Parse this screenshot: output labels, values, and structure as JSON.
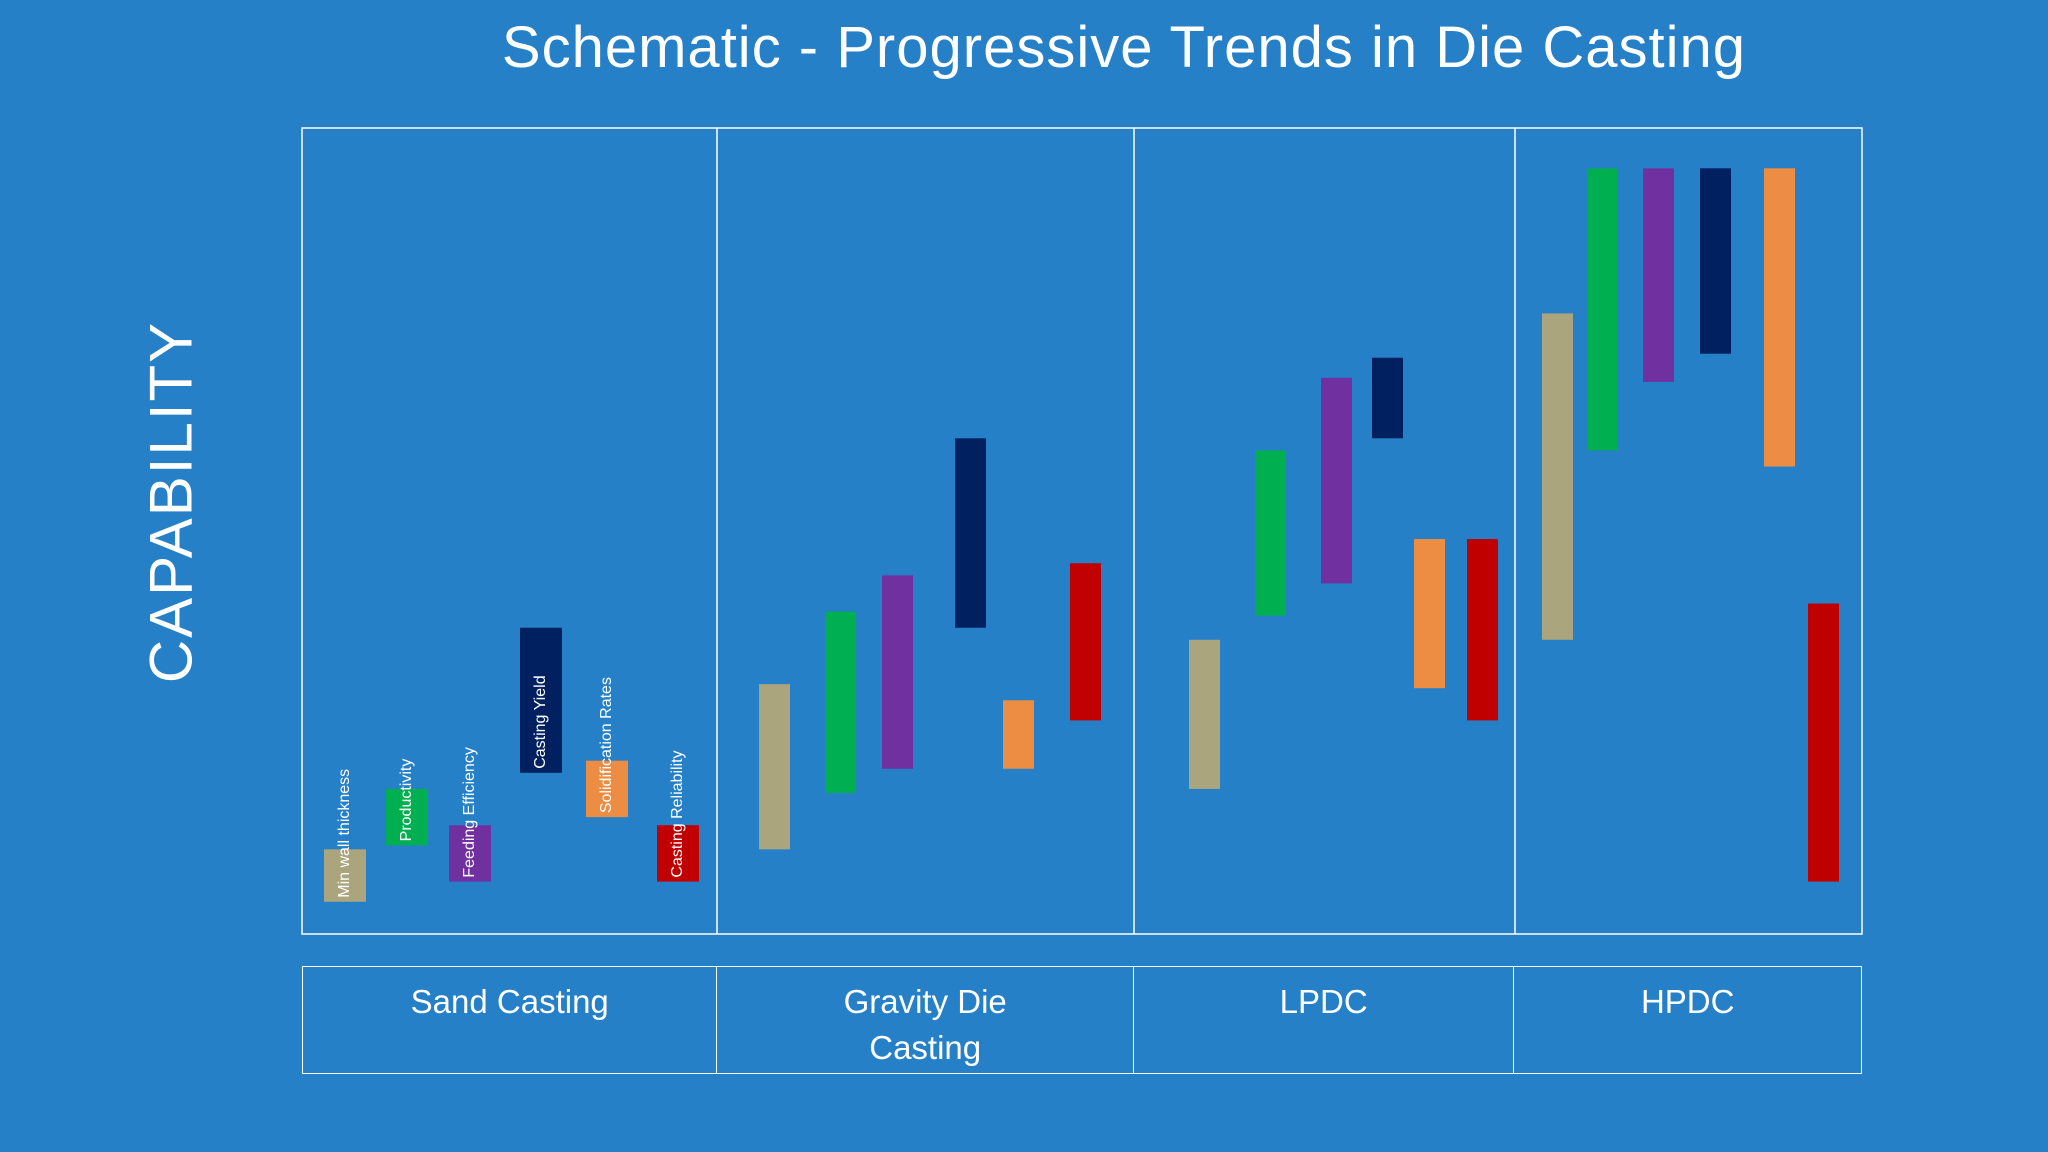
{
  "chart_data": {
    "type": "bar",
    "title": "Schematic - Progressive Trends in Die Casting",
    "ylabel": "CAPABILITY",
    "xlabel": "",
    "ylim": [
      0,
      100
    ],
    "grid": false,
    "categories": [
      "Sand Casting",
      "Gravity Die Casting",
      "LPDC",
      "HPDC"
    ],
    "category_labels": [
      [
        "Sand Casting"
      ],
      [
        "Gravity Die",
        "Casting"
      ],
      [
        "LPDC"
      ],
      [
        "HPDC"
      ]
    ],
    "series": [
      {
        "name": "Min wall thickness",
        "color": "#ABA57E",
        "ranges": [
          [
            4,
            10.5
          ],
          [
            10.5,
            31
          ],
          [
            18,
            36.5
          ],
          [
            36.5,
            77
          ]
        ]
      },
      {
        "name": "Productivity",
        "color": "#00AF50",
        "ranges": [
          [
            11,
            18
          ],
          [
            17.5,
            40
          ],
          [
            39.5,
            60
          ],
          [
            60,
            95
          ]
        ]
      },
      {
        "name": "Feeding Efficiency",
        "color": "#7030A0",
        "ranges": [
          [
            6.5,
            13.5
          ],
          [
            20.5,
            44.5
          ],
          [
            43.5,
            69
          ],
          [
            68.5,
            95
          ]
        ]
      },
      {
        "name": "Casting Yield",
        "color": "#002060",
        "ranges": [
          [
            20,
            38
          ],
          [
            38,
            61.5
          ],
          [
            61.5,
            71.5
          ],
          [
            72,
            95
          ]
        ]
      },
      {
        "name": "Solidification Rates",
        "color": "#ED8D43",
        "ranges": [
          [
            14.5,
            21.5
          ],
          [
            20.5,
            29
          ],
          [
            30.5,
            49
          ],
          [
            58,
            95
          ]
        ]
      },
      {
        "name": "Casting Reliability",
        "color": "#C00000",
        "ranges": [
          [
            6.5,
            13.5
          ],
          [
            26.5,
            46
          ],
          [
            26.5,
            49
          ],
          [
            6.5,
            41
          ]
        ]
      }
    ],
    "series_label_visible_in": "Sand Casting"
  }
}
